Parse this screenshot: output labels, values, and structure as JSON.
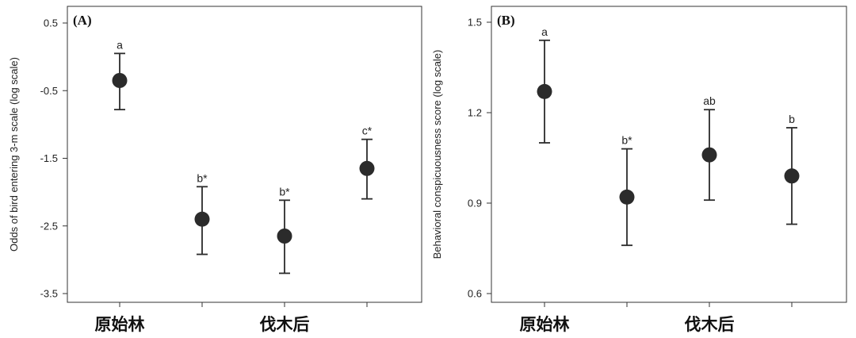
{
  "chart_data": [
    {
      "type": "scatter",
      "panel_label": "(A)",
      "ylabel": "Odds of bird entering 3-m scale (log scale)",
      "yticks": [
        0.5,
        -0.5,
        -1.5,
        -2.5,
        -3.5
      ],
      "ylim": [
        -3.6,
        0.6
      ],
      "x_positions": [
        1,
        2,
        3,
        4
      ],
      "groups": [
        {
          "label": "原始林",
          "center": 1
        },
        {
          "label": "伐木后",
          "center": 3
        }
      ],
      "points": [
        {
          "x": 1,
          "mean": -0.35,
          "upper": 0.05,
          "lower": -0.78,
          "letter": "a"
        },
        {
          "x": 2,
          "mean": -2.4,
          "upper": -1.92,
          "lower": -2.92,
          "letter": "b*"
        },
        {
          "x": 3,
          "mean": -2.65,
          "upper": -2.12,
          "lower": -3.2,
          "letter": "b*"
        },
        {
          "x": 4,
          "mean": -1.65,
          "upper": -1.22,
          "lower": -2.1,
          "letter": "c*"
        }
      ]
    },
    {
      "type": "scatter",
      "panel_label": "(B)",
      "ylabel": "Behavioral conspicuousness score (log scale)",
      "yticks": [
        1.5,
        1.2,
        0.9,
        0.6
      ],
      "ylim": [
        0.58,
        1.53
      ],
      "x_positions": [
        1,
        2,
        3,
        4
      ],
      "groups": [
        {
          "label": "原始林",
          "center": 1
        },
        {
          "label": "伐木后",
          "center": 3
        }
      ],
      "points": [
        {
          "x": 1,
          "mean": 1.27,
          "upper": 1.44,
          "lower": 1.1,
          "letter": "a"
        },
        {
          "x": 2,
          "mean": 0.92,
          "upper": 1.08,
          "lower": 0.76,
          "letter": "b*"
        },
        {
          "x": 3,
          "mean": 1.06,
          "upper": 1.21,
          "lower": 0.91,
          "letter": "ab"
        },
        {
          "x": 4,
          "mean": 0.99,
          "upper": 1.15,
          "lower": 0.83,
          "letter": "b"
        }
      ]
    }
  ],
  "colors": {
    "point": "#2b2b2b",
    "axis": "#333333"
  }
}
